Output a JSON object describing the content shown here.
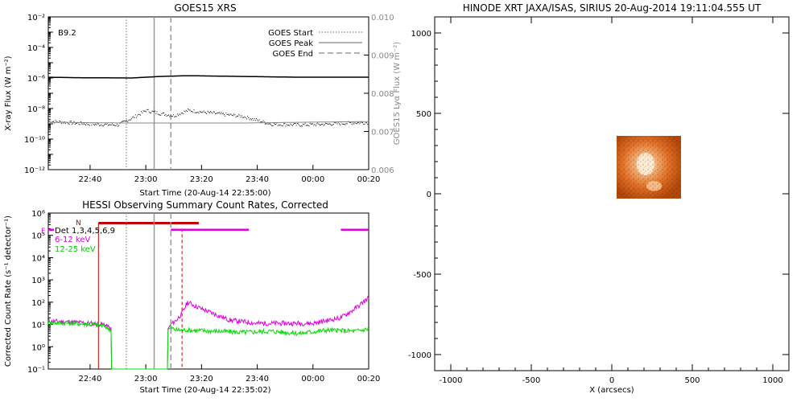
{
  "chart_data": [
    {
      "type": "line",
      "title": "GOES15 XRS",
      "xlabel": "Start Time (20-Aug-14 22:35:00)",
      "ylabel": "X-ray Flux (W m⁻²)",
      "ylabel_right": "GOES15 Lyα Flux (W m⁻²)",
      "flare_class": "B9.2",
      "x_ticks": [
        "22:40",
        "23:00",
        "23:20",
        "23:40",
        "00:00",
        "00:20"
      ],
      "x_range_minutes": [
        -10,
        105
      ],
      "y_scale": "log",
      "y_ticks": [
        "10⁻¹²",
        "10⁻¹⁰",
        "10⁻⁸",
        "10⁻⁶",
        "10⁻⁴",
        "10⁻²"
      ],
      "ylim": [
        "1e-12",
        "1e-2"
      ],
      "y2_ticks": [
        "0.006",
        "0.007",
        "0.008",
        "0.009",
        "0.010"
      ],
      "y2lim": [
        0.006,
        0.01
      ],
      "legend": [
        {
          "label": "GOES Start",
          "style": "dotted"
        },
        {
          "label": "GOES Peak",
          "style": "solid"
        },
        {
          "label": "GOES End",
          "style": "dashed"
        }
      ],
      "legend_position": "top-right",
      "events_minutes": {
        "start": 18,
        "peak": 28,
        "end": 34
      },
      "series": [
        {
          "name": "long",
          "style": "solid",
          "color": "#000000",
          "x": [
            -10,
            0,
            20,
            30,
            40,
            60,
            80,
            105
          ],
          "y": [
            -5.95,
            -5.98,
            -6.0,
            -5.9,
            -5.85,
            -5.9,
            -5.95,
            -5.95
          ]
        },
        {
          "name": "short",
          "style": "dotted",
          "color": "#000000",
          "x": [
            -10,
            5,
            15,
            20,
            25,
            30,
            35,
            40,
            50,
            60,
            70,
            80,
            90,
            100,
            105
          ],
          "y": [
            -8.8,
            -9.0,
            -9.05,
            -8.6,
            -8.1,
            -8.3,
            -8.45,
            -8.1,
            -8.3,
            -8.5,
            -9.0,
            -9.05,
            -9.0,
            -8.9,
            -8.9
          ]
        },
        {
          "name": "lya",
          "style": "solid",
          "color": "#888888",
          "x": [
            -10,
            20,
            40,
            60,
            80,
            105
          ],
          "y": [
            -8.9,
            -8.95,
            -8.95,
            -8.95,
            -8.9,
            -8.85
          ]
        }
      ]
    },
    {
      "type": "line",
      "title": "HESSI Observing Summary Count Rates, Corrected",
      "xlabel": "Start Time (20-Aug-14 22:35:02)",
      "ylabel": "Corrected Count Rate (s⁻¹ detector⁻¹)",
      "x_ticks": [
        "22:40",
        "23:00",
        "23:20",
        "23:40",
        "00:00",
        "00:20"
      ],
      "x_range_minutes": [
        -10,
        105
      ],
      "y_scale": "log",
      "y_ticks": [
        "10⁻¹",
        "10⁰",
        "10¹",
        "10²",
        "10³",
        "10⁴",
        "10⁵",
        "10⁶"
      ],
      "ylim": [
        "1e-1",
        "1e6"
      ],
      "legend": [
        "Det 1,3,4,5,6,9",
        "6-12 keV",
        "12-25 keV"
      ],
      "legend_colors": [
        "#000000",
        "#e000e0",
        "#00dd00"
      ],
      "flag_labels": {
        "F": "F",
        "N": "N"
      },
      "events_minutes": {
        "start": 18,
        "peak": 28,
        "end": 34
      },
      "night_interval_minutes": [
        8,
        44
      ],
      "saa_intervals_minutes": [
        [
          -10,
          -8
        ],
        [
          34,
          62
        ],
        [
          95,
          105
        ]
      ],
      "red_dashed_minutes": 38,
      "series": [
        {
          "name": "6-12 keV",
          "color": "#e000e0",
          "x": [
            -10,
            0,
            10,
            12.5,
            33,
            34,
            36,
            38,
            40,
            45,
            55,
            65,
            75,
            85,
            95,
            100,
            105
          ],
          "y": [
            1.15,
            1.1,
            1.0,
            0.8,
            0.8,
            1.0,
            1.2,
            1.5,
            2.0,
            1.7,
            1.2,
            1.05,
            1.05,
            1.05,
            1.3,
            1.7,
            2.2
          ]
        },
        {
          "name": "12-25 keV",
          "color": "#00dd00",
          "x": [
            -10,
            0,
            10,
            12.5,
            33,
            34,
            36,
            40,
            50,
            60,
            70,
            80,
            90,
            100,
            105
          ],
          "y": [
            1.1,
            1.05,
            0.95,
            0.75,
            0.75,
            0.85,
            0.75,
            0.75,
            0.7,
            0.65,
            0.7,
            0.6,
            0.75,
            0.7,
            0.8
          ]
        }
      ]
    },
    {
      "type": "heatmap",
      "title": "HINODE XRT JAXA/ISAS, SIRIUS 20-Aug-2014 19:11:04.555 UT",
      "xlabel": "X (arcsecs)",
      "ylabel": "",
      "x_ticks": [
        "-1000",
        "-500",
        "0",
        "500",
        "1000"
      ],
      "y_ticks": [
        "-1000",
        "-500",
        "0",
        "500",
        "1000"
      ],
      "xlim": [
        -1100,
        1100
      ],
      "ylim": [
        -1100,
        1100
      ],
      "image_extent": {
        "x": [
          30,
          430
        ],
        "y": [
          -30,
          360
        ]
      },
      "colormap": [
        "#7a2a00",
        "#d9601a",
        "#ff9a50",
        "#ffe6c0"
      ]
    }
  ]
}
